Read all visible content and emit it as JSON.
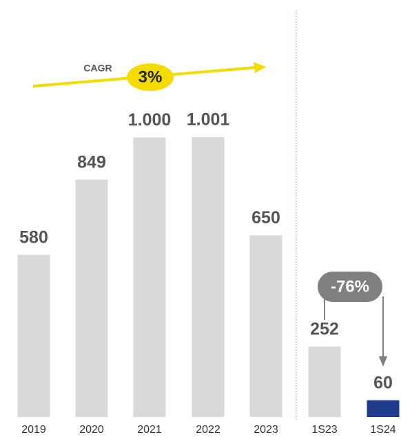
{
  "chart_data": {
    "type": "bar",
    "categories": [
      "2019",
      "2020",
      "2021",
      "2022",
      "2023",
      "1S23",
      "1S24"
    ],
    "values": [
      580,
      849,
      1000,
      1001,
      650,
      252,
      60
    ],
    "value_labels": [
      "580",
      "849",
      "1.000",
      "1.001",
      "650",
      "252",
      "60"
    ],
    "colors": [
      "#d9d9d9",
      "#d9d9d9",
      "#d9d9d9",
      "#d9d9d9",
      "#d9d9d9",
      "#d9d9d9",
      "#1f3c8c"
    ],
    "annotations": {
      "cagr_label": "CAGR",
      "cagr_value": "3%",
      "change": "-76%"
    }
  }
}
